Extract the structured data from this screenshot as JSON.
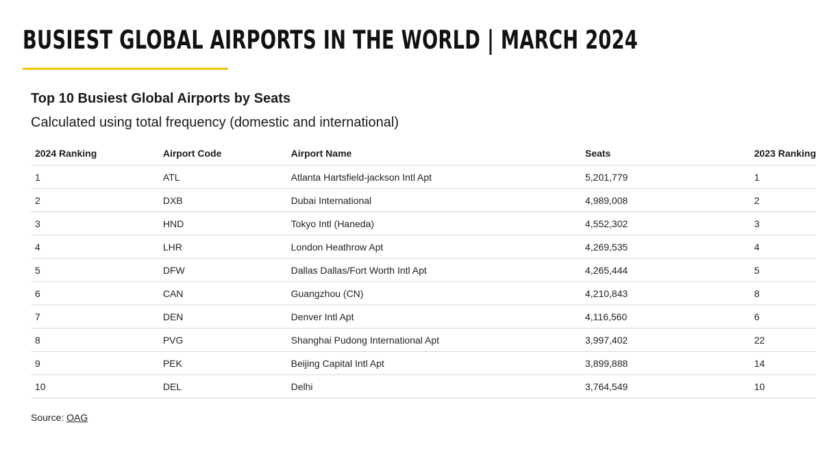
{
  "header": {
    "title": "BUSIEST GLOBAL AIRPORTS IN THE WORLD | MARCH 2024",
    "accent_color": "#f5c400"
  },
  "table": {
    "title": "Top 10 Busiest Global Airports by Seats",
    "subtitle": "Calculated using total frequency (domestic and international)",
    "columns": [
      "2024 Ranking",
      "Airport Code",
      "Airport Name",
      "Seats",
      "2023 Ranking"
    ],
    "rows": [
      [
        "1",
        "ATL",
        "Atlanta Hartsfield-jackson Intl Apt",
        "5,201,779",
        "1"
      ],
      [
        "2",
        "DXB",
        "Dubai International",
        "4,989,008",
        "2"
      ],
      [
        "3",
        "HND",
        "Tokyo Intl (Haneda)",
        "4,552,302",
        "3"
      ],
      [
        "4",
        "LHR",
        "London Heathrow Apt",
        "4,269,535",
        "4"
      ],
      [
        "5",
        "DFW",
        "Dallas Dallas/Fort Worth Intl Apt",
        "4,265,444",
        "5"
      ],
      [
        "6",
        "CAN",
        "Guangzhou (CN)",
        "4,210,843",
        "8"
      ],
      [
        "7",
        "DEN",
        "Denver Intl Apt",
        "4,116,560",
        "6"
      ],
      [
        "8",
        "PVG",
        "Shanghai Pudong International Apt",
        "3,997,402",
        "22"
      ],
      [
        "9",
        "PEK",
        "Beijing Capital Intl Apt",
        "3,899,888",
        "14"
      ],
      [
        "10",
        "DEL",
        "Delhi",
        "3,764,549",
        "10"
      ]
    ]
  },
  "source": {
    "label": "Source:",
    "link_text": "OAG"
  }
}
